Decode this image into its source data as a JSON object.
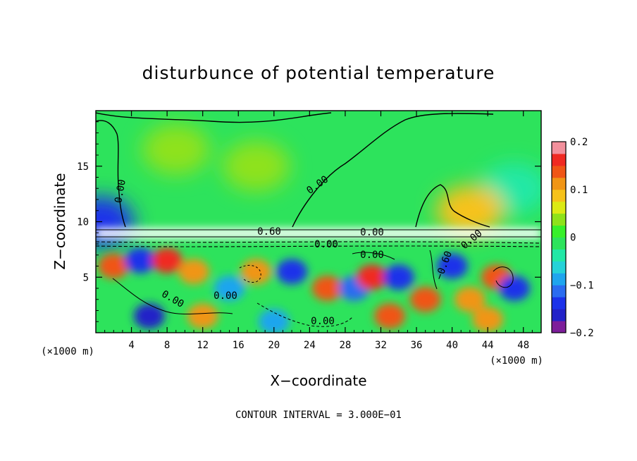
{
  "chart_data": {
    "type": "heatmap",
    "title": "disturbunce of potential temperature",
    "xlabel": "X−coordinate",
    "ylabel": "Z−coordinate",
    "x_unit": "(×1000 m)",
    "y_unit": "(×1000 m)",
    "xlim": [
      0,
      50
    ],
    "ylim": [
      0,
      20
    ],
    "x_ticks": [
      4,
      8,
      12,
      16,
      20,
      24,
      28,
      32,
      36,
      40,
      44,
      48
    ],
    "x_tick_labels": [
      "4",
      "8",
      "12",
      "16",
      "20",
      "24",
      "28",
      "32",
      "36",
      "40",
      "44",
      "48"
    ],
    "y_ticks": [
      5,
      10,
      15
    ],
    "y_tick_labels": [
      "5",
      "10",
      "15"
    ],
    "colorbar": {
      "range": [
        -0.2,
        0.2
      ],
      "tick_values": [
        0.2,
        0.1,
        0,
        -0.1,
        -0.2
      ],
      "tick_labels": [
        "0.2",
        "0.1",
        "0",
        "−0.1",
        "−0.2"
      ],
      "colors": [
        "#7d1e9a",
        "#2222c8",
        "#1c32ea",
        "#2b6cf0",
        "#1fa5ee",
        "#25d2d8",
        "#22e8a6",
        "#2de35c",
        "#37f02a",
        "#8ee21a",
        "#dcea14",
        "#f6c21a",
        "#f09516",
        "#f05516",
        "#f02a22",
        "#f2909c"
      ]
    },
    "contour_interval_text": "CONTOUR INTERVAL = 3.000E−01",
    "contour_labels": [
      "0.00",
      "0.00",
      "0.00",
      "0.00",
      "0.60",
      "0.00",
      "0.00",
      "0.00",
      "0.00",
      "−0.60",
      "0.00"
    ],
    "background_value": 0,
    "anomalies": [
      {
        "x": 9,
        "z": 16.5,
        "value": 0.04
      },
      {
        "x": 18,
        "z": 15,
        "value": 0.03
      },
      {
        "x": 47,
        "z": 13,
        "value": -0.04
      },
      {
        "x": 42,
        "z": 11,
        "value": 0.08
      },
      {
        "x": 0.5,
        "z": 10,
        "value": -0.15
      },
      {
        "x": 2,
        "z": 6,
        "value": 0.15
      },
      {
        "x": 5,
        "z": 6.5,
        "value": -0.14
      },
      {
        "x": 8,
        "z": 6.5,
        "value": 0.16
      },
      {
        "x": 11,
        "z": 5.5,
        "value": 0.12
      },
      {
        "x": 15,
        "z": 4,
        "value": -0.1
      },
      {
        "x": 18,
        "z": 5.5,
        "value": 0.1
      },
      {
        "x": 22,
        "z": 5.5,
        "value": -0.15
      },
      {
        "x": 26,
        "z": 4,
        "value": 0.15
      },
      {
        "x": 29,
        "z": 4,
        "value": -0.12
      },
      {
        "x": 31,
        "z": 5,
        "value": 0.17
      },
      {
        "x": 34,
        "z": 5,
        "value": -0.14
      },
      {
        "x": 37,
        "z": 3,
        "value": 0.14
      },
      {
        "x": 40,
        "z": 6,
        "value": -0.15
      },
      {
        "x": 42,
        "z": 3,
        "value": 0.12
      },
      {
        "x": 45,
        "z": 5,
        "value": 0.14
      },
      {
        "x": 47,
        "z": 4,
        "value": -0.14
      },
      {
        "x": 6,
        "z": 1.5,
        "value": -0.17
      },
      {
        "x": 12,
        "z": 1.5,
        "value": 0.1
      },
      {
        "x": 20,
        "z": 1,
        "value": -0.1
      },
      {
        "x": 33,
        "z": 1.5,
        "value": 0.14
      },
      {
        "x": 44,
        "z": 1.2,
        "value": 0.1
      }
    ]
  }
}
